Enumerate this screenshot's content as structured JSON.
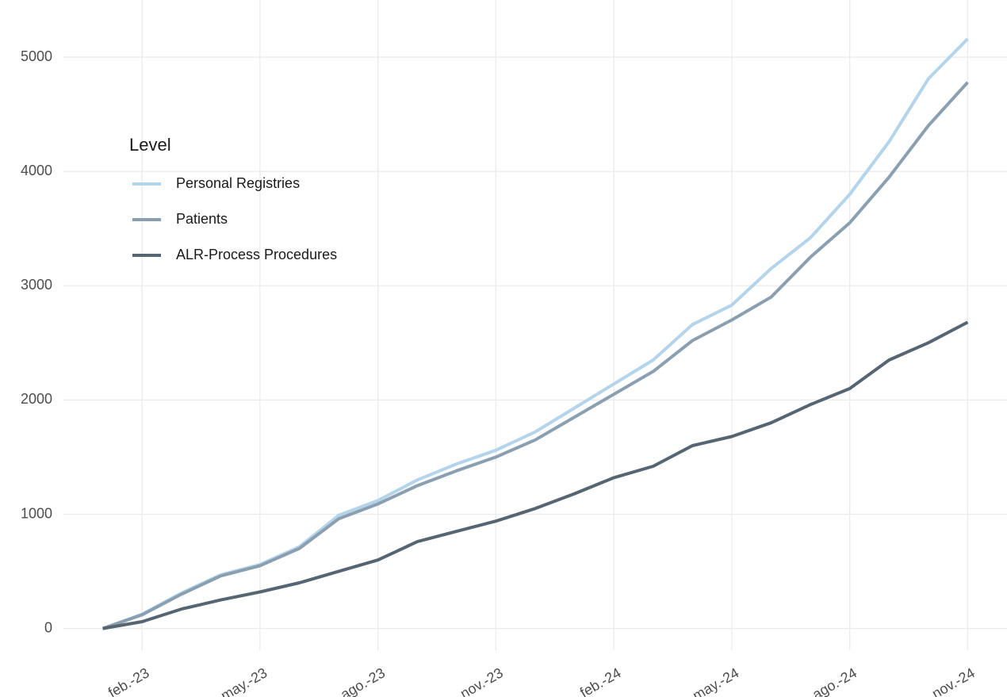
{
  "chart_data": {
    "type": "line",
    "x": [
      "2023-01",
      "2023-02",
      "2023-03",
      "2023-04",
      "2023-05",
      "2023-06",
      "2023-07",
      "2023-08",
      "2023-09",
      "2023-10",
      "2023-11",
      "2023-12",
      "2024-01",
      "2024-02",
      "2024-03",
      "2024-04",
      "2024-05",
      "2024-06",
      "2024-07",
      "2024-08",
      "2024-09",
      "2024-10",
      "2024-11"
    ],
    "series": [
      {
        "name": "Personal Registries",
        "color": "#b3d4ea",
        "values": [
          0,
          125,
          310,
          470,
          560,
          715,
          990,
          1120,
          1300,
          1440,
          1560,
          1720,
          1930,
          2140,
          2350,
          2660,
          2830,
          3150,
          3420,
          3800,
          4260,
          4810,
          5160
        ]
      },
      {
        "name": "Patients",
        "color": "#8aa0b0",
        "values": [
          0,
          120,
          300,
          460,
          550,
          700,
          960,
          1090,
          1250,
          1380,
          1500,
          1650,
          1850,
          2050,
          2250,
          2520,
          2700,
          2900,
          3250,
          3550,
          3950,
          4400,
          4780
        ]
      },
      {
        "name": "ALR-Process Procedures",
        "color": "#566572",
        "values": [
          0,
          60,
          170,
          250,
          320,
          400,
          500,
          600,
          760,
          850,
          940,
          1050,
          1180,
          1320,
          1420,
          1600,
          1680,
          1800,
          1960,
          2100,
          2350,
          2500,
          2680
        ]
      }
    ],
    "legend_title": "Level",
    "xlim": [
      "2022-12",
      "2024-12"
    ],
    "xticks": [
      {
        "value": "2023-02",
        "label": "feb.-23"
      },
      {
        "value": "2023-05",
        "label": "may.-23"
      },
      {
        "value": "2023-08",
        "label": "ago.-23"
      },
      {
        "value": "2023-11",
        "label": "nov.-23"
      },
      {
        "value": "2024-02",
        "label": "feb.-24"
      },
      {
        "value": "2024-05",
        "label": "may.-24"
      },
      {
        "value": "2024-08",
        "label": "ago.-24"
      },
      {
        "value": "2024-11",
        "label": "nov.-24"
      }
    ],
    "ylim": [
      -190,
      5500
    ],
    "yticks": [
      0,
      1000,
      2000,
      3000,
      4000,
      5000
    ],
    "grid": true,
    "legend": "top-left"
  }
}
